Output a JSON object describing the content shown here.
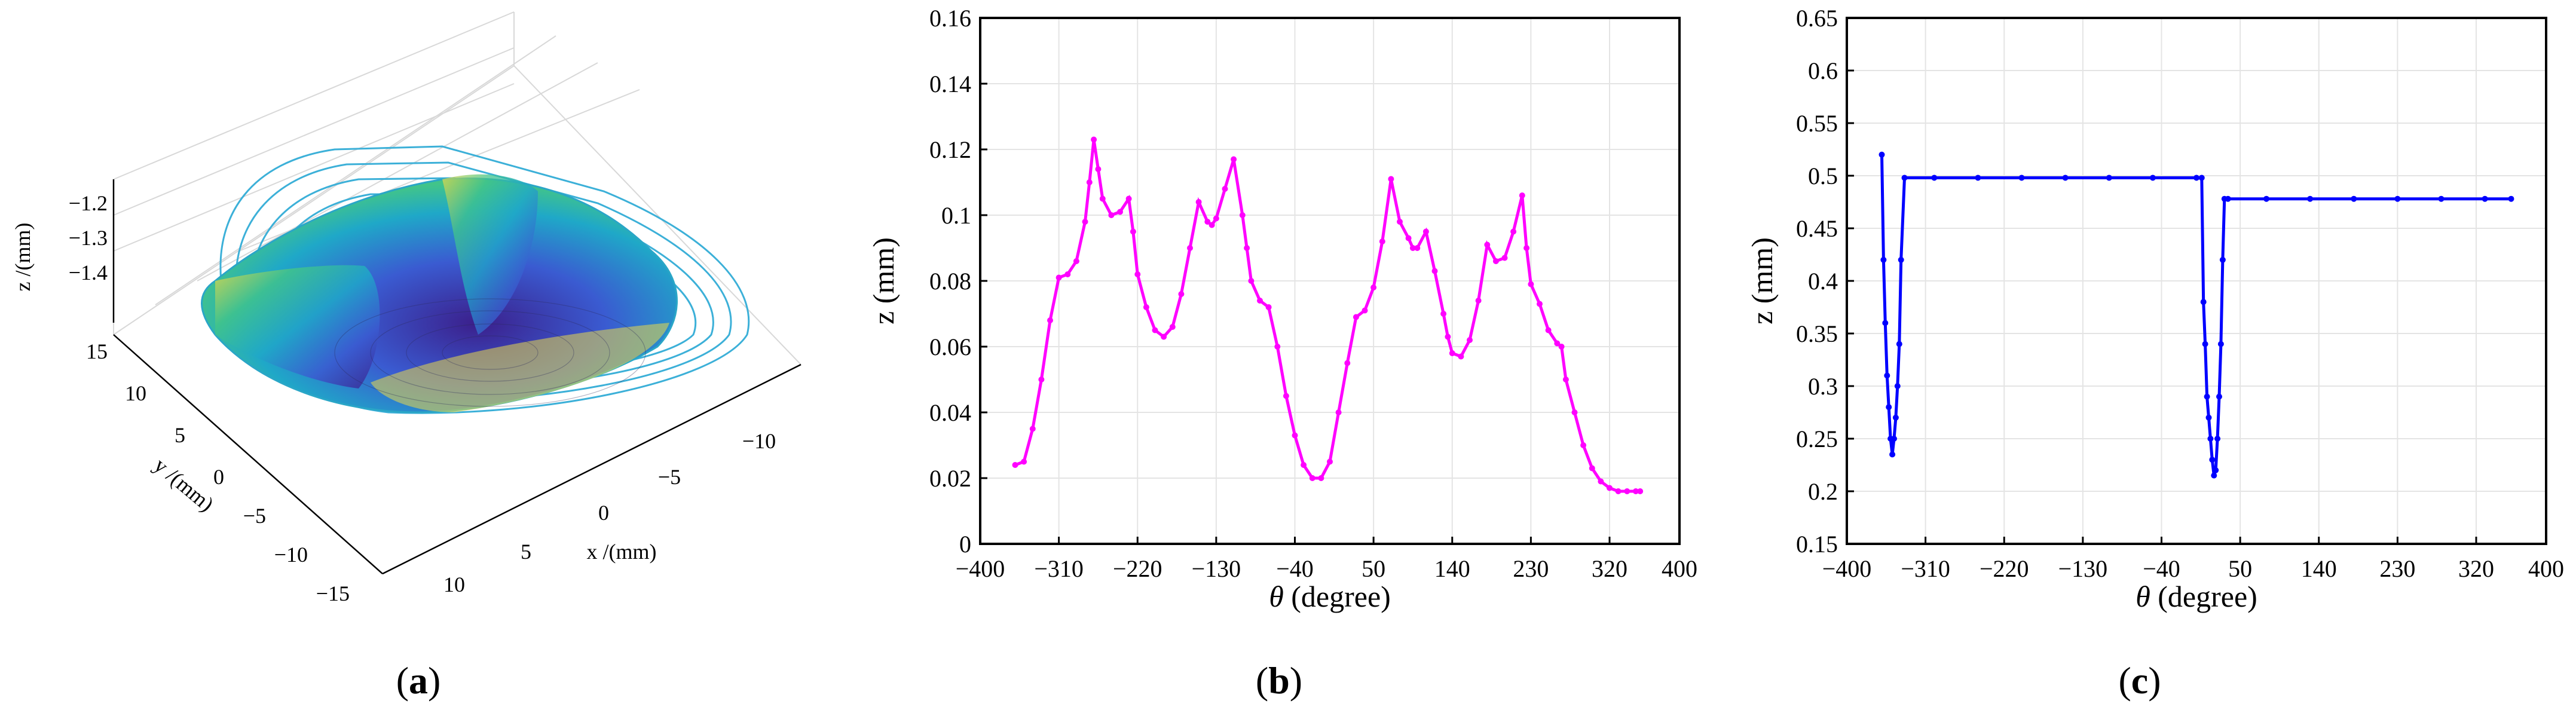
{
  "panels": [
    {
      "label_open": "(",
      "label_letter": "a",
      "label_close": ")"
    },
    {
      "label_open": "(",
      "label_letter": "b",
      "label_close": ")"
    },
    {
      "label_open": "(",
      "label_letter": "c",
      "label_close": ")"
    }
  ],
  "chart_data": [
    {
      "type": "surface3d",
      "xlabel": "x /(mm)",
      "ylabel": "y /(mm)",
      "zlabel": "z /(mm)",
      "x_ticks": [
        "10",
        "5",
        "0",
        "−5",
        "−10"
      ],
      "y_ticks": [
        "15",
        "10",
        "5",
        "0",
        "−5",
        "−10",
        "−15"
      ],
      "z_ticks": [
        "−1.2",
        "−1.3",
        "−1.4"
      ],
      "colormap": [
        "#3b1f8b",
        "#3a5bd1",
        "#1fa8c8",
        "#41c48a",
        "#e8d84a"
      ],
      "contour_color": "#3cb0d8"
    },
    {
      "type": "line",
      "xlabel_symbol": "θ",
      "xlabel_rest": " (degree)",
      "ylabel": "z (mm)",
      "xlim": [
        -400,
        400
      ],
      "ylim": [
        0,
        0.16
      ],
      "x_ticks": [
        "−400",
        "−310",
        "−220",
        "−130",
        "−40",
        "50",
        "140",
        "230",
        "320",
        "400"
      ],
      "x_tick_values": [
        -400,
        -310,
        -220,
        -130,
        -40,
        50,
        140,
        230,
        320,
        400
      ],
      "y_ticks": [
        "0",
        "0.02",
        "0.04",
        "0.06",
        "0.08",
        "0.1",
        "0.12",
        "0.14",
        "0.16"
      ],
      "y_tick_values": [
        0,
        0.02,
        0.04,
        0.06,
        0.08,
        0.1,
        0.12,
        0.14,
        0.16
      ],
      "grid": true,
      "color": "#ff00ff",
      "series": [
        {
          "x": [
            -360,
            -350,
            -340,
            -330,
            -320,
            -310,
            -300,
            -290,
            -280,
            -275,
            -270,
            -265,
            -260,
            -250,
            -240,
            -230,
            -225,
            -220,
            -210,
            -200,
            -190,
            -180,
            -170,
            -160,
            -150,
            -140,
            -135,
            -130,
            -120,
            -110,
            -100,
            -95,
            -90,
            -80,
            -70,
            -60,
            -50,
            -40,
            -30,
            -20,
            -10,
            0,
            10,
            20,
            30,
            40,
            50,
            60,
            70,
            80,
            90,
            95,
            100,
            110,
            120,
            130,
            135,
            140,
            150,
            160,
            170,
            180,
            190,
            200,
            210,
            220,
            225,
            230,
            240,
            250,
            260,
            265,
            270,
            280,
            290,
            300,
            310,
            320,
            330,
            340,
            350,
            355
          ],
          "y": [
            0.024,
            0.025,
            0.035,
            0.05,
            0.068,
            0.081,
            0.082,
            0.086,
            0.098,
            0.11,
            0.123,
            0.114,
            0.105,
            0.1,
            0.101,
            0.105,
            0.095,
            0.082,
            0.072,
            0.065,
            0.063,
            0.066,
            0.076,
            0.09,
            0.104,
            0.098,
            0.097,
            0.099,
            0.108,
            0.117,
            0.1,
            0.09,
            0.08,
            0.074,
            0.072,
            0.06,
            0.045,
            0.033,
            0.024,
            0.02,
            0.02,
            0.025,
            0.04,
            0.055,
            0.069,
            0.071,
            0.078,
            0.092,
            0.111,
            0.098,
            0.093,
            0.09,
            0.09,
            0.095,
            0.083,
            0.07,
            0.063,
            0.058,
            0.057,
            0.062,
            0.074,
            0.091,
            0.086,
            0.087,
            0.095,
            0.106,
            0.09,
            0.079,
            0.073,
            0.065,
            0.061,
            0.06,
            0.05,
            0.04,
            0.03,
            0.023,
            0.019,
            0.017,
            0.016,
            0.016,
            0.016,
            0.016
          ]
        }
      ]
    },
    {
      "type": "line",
      "xlabel_symbol": "θ",
      "xlabel_rest": " (degree)",
      "ylabel": "z (mm)",
      "xlim": [
        -400,
        400
      ],
      "ylim": [
        0.15,
        0.65
      ],
      "x_ticks": [
        "−400",
        "−310",
        "−220",
        "−130",
        "−40",
        "50",
        "140",
        "230",
        "320",
        "400"
      ],
      "x_tick_values": [
        -400,
        -310,
        -220,
        -130,
        -40,
        50,
        140,
        230,
        320,
        400
      ],
      "y_ticks": [
        "0.15",
        "0.2",
        "0.25",
        "0.3",
        "0.35",
        "0.4",
        "0.45",
        "0.5",
        "0.55",
        "0.6",
        "0.65"
      ],
      "y_tick_values": [
        0.15,
        0.2,
        0.25,
        0.3,
        0.35,
        0.4,
        0.45,
        0.5,
        0.55,
        0.6,
        0.65
      ],
      "grid": true,
      "color": "#0000ff",
      "series": [
        {
          "x": [
            -360,
            -358,
            -356,
            -354,
            -352,
            -350,
            -348,
            -346,
            -344,
            -342,
            -340,
            -338,
            -334,
            -300,
            -250,
            -200,
            -150,
            -100,
            -50,
            0,
            6,
            8,
            10,
            12,
            14,
            16,
            18,
            20,
            22,
            24,
            26,
            28,
            30,
            32,
            36,
            80,
            130,
            180,
            230,
            280,
            330,
            360
          ],
          "y": [
            0.52,
            0.42,
            0.36,
            0.31,
            0.28,
            0.25,
            0.235,
            0.25,
            0.27,
            0.3,
            0.34,
            0.42,
            0.498,
            0.498,
            0.498,
            0.498,
            0.498,
            0.498,
            0.498,
            0.498,
            0.498,
            0.38,
            0.34,
            0.29,
            0.27,
            0.25,
            0.23,
            0.215,
            0.22,
            0.25,
            0.29,
            0.34,
            0.42,
            0.478,
            0.478,
            0.478,
            0.478,
            0.478,
            0.478,
            0.478,
            0.478,
            0.478
          ]
        }
      ]
    }
  ]
}
